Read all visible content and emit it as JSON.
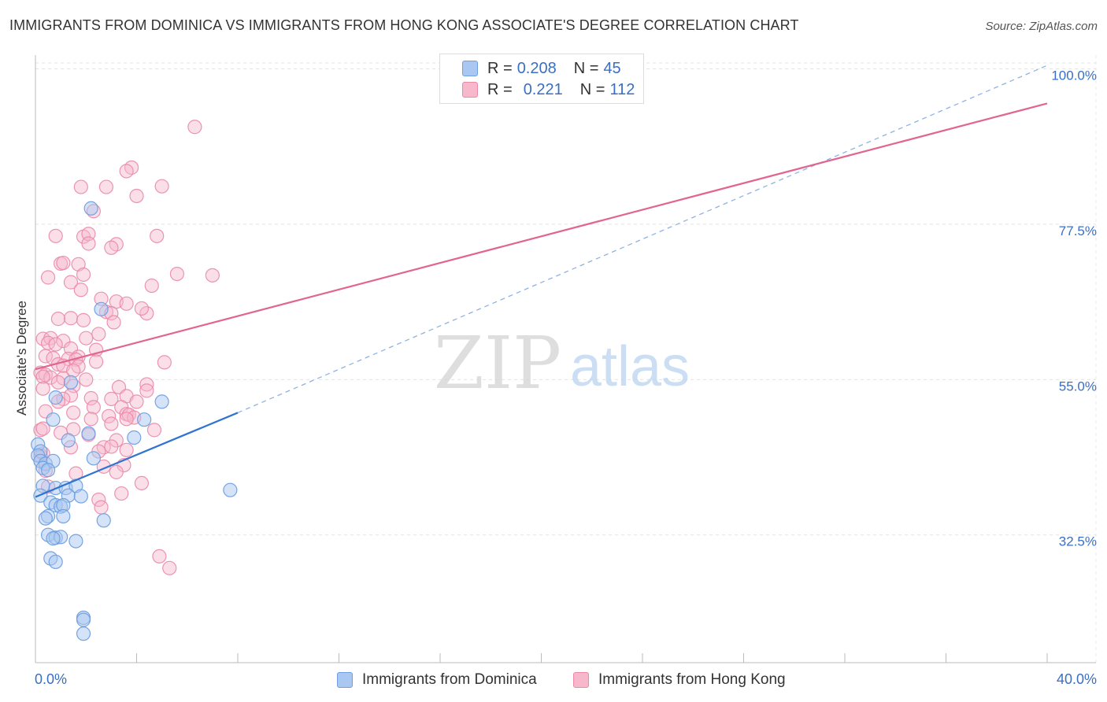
{
  "title": "IMMIGRANTS FROM DOMINICA VS IMMIGRANTS FROM HONG KONG ASSOCIATE'S DEGREE CORRELATION CHART",
  "source": "Source: ZipAtlas.com",
  "watermark": {
    "zip": "ZIP",
    "atlas": "atlas"
  },
  "legend": {
    "r_label": "R =",
    "n_label": "N =",
    "rows": [
      {
        "name": "Immigrants from Dominica",
        "r": "0.208",
        "n": "45",
        "color": "#a9c7f0",
        "border": "#6f9fe0"
      },
      {
        "name": "Immigrants from Hong Kong",
        "r": "0.221",
        "n": "112",
        "color": "#f7b8cc",
        "border": "#e98aa8"
      }
    ]
  },
  "chart_data": {
    "type": "scatter",
    "title": "IMMIGRANTS FROM DOMINICA VS IMMIGRANTS FROM HONG KONG ASSOCIATE'S DEGREE CORRELATION CHART",
    "xlabel": "",
    "ylabel": "Associate's Degree",
    "xlim": [
      0,
      40
    ],
    "ylim": [
      14,
      102
    ],
    "x_tick_labels": [
      "0.0%",
      "40.0%"
    ],
    "y_ticks": [
      32.5,
      55.0,
      77.5,
      100.0
    ],
    "y_tick_labels": [
      "32.5%",
      "55.0%",
      "77.5%",
      "100.0%"
    ],
    "grid": true,
    "series": [
      {
        "name": "Immigrants from Dominica",
        "color": "#6f9fe0",
        "fill": "#a9c7f0",
        "trend": {
          "x": [
            0,
            8
          ],
          "y": [
            38.0,
            50.2
          ],
          "color": "#2f74d0",
          "dashed_to": [
            40,
            100.5
          ],
          "dashed_color": "#8fb2e2"
        },
        "points": [
          [
            2.2,
            79.8
          ],
          [
            2.6,
            65.2
          ],
          [
            1.4,
            54.6
          ],
          [
            0.8,
            52.4
          ],
          [
            5.0,
            51.8
          ],
          [
            0.7,
            49.2
          ],
          [
            4.3,
            49.2
          ],
          [
            2.1,
            47.2
          ],
          [
            3.9,
            46.6
          ],
          [
            1.3,
            46.2
          ],
          [
            0.1,
            45.6
          ],
          [
            0.2,
            44.6
          ],
          [
            0.1,
            44.0
          ],
          [
            0.2,
            43.2
          ],
          [
            0.4,
            42.8
          ],
          [
            2.3,
            43.6
          ],
          [
            0.7,
            43.2
          ],
          [
            0.3,
            42.2
          ],
          [
            0.5,
            41.9
          ],
          [
            0.3,
            39.6
          ],
          [
            0.8,
            39.3
          ],
          [
            1.2,
            39.3
          ],
          [
            1.6,
            39.6
          ],
          [
            7.7,
            39.0
          ],
          [
            0.2,
            38.2
          ],
          [
            1.3,
            38.2
          ],
          [
            1.8,
            38.1
          ],
          [
            0.6,
            37.2
          ],
          [
            0.8,
            36.8
          ],
          [
            1.0,
            36.6
          ],
          [
            1.1,
            36.8
          ],
          [
            0.5,
            35.2
          ],
          [
            0.4,
            34.9
          ],
          [
            1.1,
            35.2
          ],
          [
            2.7,
            34.6
          ],
          [
            0.5,
            32.5
          ],
          [
            0.8,
            32.1
          ],
          [
            1.0,
            32.2
          ],
          [
            0.7,
            32.0
          ],
          [
            1.6,
            31.6
          ],
          [
            0.6,
            29.1
          ],
          [
            0.8,
            28.6
          ],
          [
            1.9,
            20.5
          ],
          [
            1.9,
            20.2
          ],
          [
            1.9,
            18.2
          ]
        ]
      },
      {
        "name": "Immigrants from Hong Kong",
        "color": "#e98aa8",
        "fill": "#f7b8cc",
        "trend": {
          "x": [
            0,
            40
          ],
          "y": [
            56.5,
            95.0
          ],
          "color": "#e0668f"
        },
        "points": [
          [
            6.3,
            91.6
          ],
          [
            3.8,
            85.7
          ],
          [
            3.6,
            85.2
          ],
          [
            1.8,
            82.9
          ],
          [
            2.8,
            82.9
          ],
          [
            5.0,
            83.0
          ],
          [
            4.0,
            81.6
          ],
          [
            2.3,
            79.4
          ],
          [
            0.8,
            75.8
          ],
          [
            1.9,
            75.7
          ],
          [
            2.1,
            76.1
          ],
          [
            4.8,
            75.8
          ],
          [
            2.1,
            74.7
          ],
          [
            3.2,
            74.6
          ],
          [
            3.0,
            74.1
          ],
          [
            1.0,
            71.8
          ],
          [
            1.1,
            71.9
          ],
          [
            1.7,
            71.7
          ],
          [
            5.6,
            70.3
          ],
          [
            7.0,
            70.1
          ],
          [
            0.5,
            69.8
          ],
          [
            1.4,
            69.1
          ],
          [
            1.9,
            70.2
          ],
          [
            1.8,
            68.0
          ],
          [
            4.6,
            68.6
          ],
          [
            2.6,
            66.7
          ],
          [
            3.2,
            66.3
          ],
          [
            3.6,
            66.0
          ],
          [
            2.8,
            64.8
          ],
          [
            4.4,
            64.6
          ],
          [
            4.2,
            65.3
          ],
          [
            3.0,
            64.6
          ],
          [
            1.4,
            63.9
          ],
          [
            0.9,
            63.8
          ],
          [
            1.9,
            63.6
          ],
          [
            3.1,
            63.3
          ],
          [
            2.5,
            61.6
          ],
          [
            2.0,
            61.0
          ],
          [
            0.3,
            60.9
          ],
          [
            0.6,
            61.0
          ],
          [
            0.5,
            60.3
          ],
          [
            1.1,
            60.6
          ],
          [
            0.8,
            60.1
          ],
          [
            1.4,
            59.5
          ],
          [
            2.4,
            59.3
          ],
          [
            0.4,
            58.4
          ],
          [
            0.7,
            58.1
          ],
          [
            1.3,
            58.0
          ],
          [
            1.7,
            58.3
          ],
          [
            1.6,
            57.9
          ],
          [
            2.4,
            57.6
          ],
          [
            0.9,
            57.2
          ],
          [
            1.1,
            57.0
          ],
          [
            5.1,
            57.5
          ],
          [
            1.7,
            56.9
          ],
          [
            1.5,
            56.3
          ],
          [
            0.2,
            56.0
          ],
          [
            0.4,
            55.7
          ],
          [
            0.6,
            55.3
          ],
          [
            1.1,
            55.2
          ],
          [
            2.0,
            55.0
          ],
          [
            0.3,
            55.4
          ],
          [
            0.9,
            54.6
          ],
          [
            4.4,
            54.3
          ],
          [
            1.5,
            54.1
          ],
          [
            3.3,
            53.9
          ],
          [
            0.3,
            53.7
          ],
          [
            4.4,
            53.4
          ],
          [
            1.4,
            52.7
          ],
          [
            3.6,
            52.6
          ],
          [
            1.1,
            52.2
          ],
          [
            2.2,
            52.3
          ],
          [
            0.9,
            51.8
          ],
          [
            3.0,
            52.2
          ],
          [
            4.0,
            51.8
          ],
          [
            3.4,
            51.0
          ],
          [
            2.3,
            51.0
          ],
          [
            0.4,
            50.4
          ],
          [
            1.5,
            50.2
          ],
          [
            3.6,
            50.0
          ],
          [
            3.7,
            49.9
          ],
          [
            3.9,
            49.5
          ],
          [
            2.9,
            49.7
          ],
          [
            3.6,
            49.3
          ],
          [
            2.2,
            49.3
          ],
          [
            3.0,
            48.6
          ],
          [
            0.2,
            47.7
          ],
          [
            0.3,
            47.9
          ],
          [
            1.5,
            47.8
          ],
          [
            4.7,
            47.7
          ],
          [
            1.0,
            47.3
          ],
          [
            2.1,
            47.0
          ],
          [
            3.2,
            46.2
          ],
          [
            1.4,
            45.2
          ],
          [
            2.7,
            45.2
          ],
          [
            3.0,
            45.3
          ],
          [
            0.3,
            44.3
          ],
          [
            3.6,
            44.8
          ],
          [
            2.5,
            44.6
          ],
          [
            0.2,
            44.0
          ],
          [
            3.5,
            42.6
          ],
          [
            2.7,
            42.4
          ],
          [
            0.4,
            41.8
          ],
          [
            3.2,
            41.6
          ],
          [
            1.6,
            41.4
          ],
          [
            4.2,
            40.0
          ],
          [
            0.5,
            39.5
          ],
          [
            3.4,
            38.5
          ],
          [
            2.5,
            37.6
          ],
          [
            2.6,
            36.5
          ],
          [
            4.9,
            29.4
          ],
          [
            5.3,
            27.7
          ]
        ]
      }
    ]
  }
}
